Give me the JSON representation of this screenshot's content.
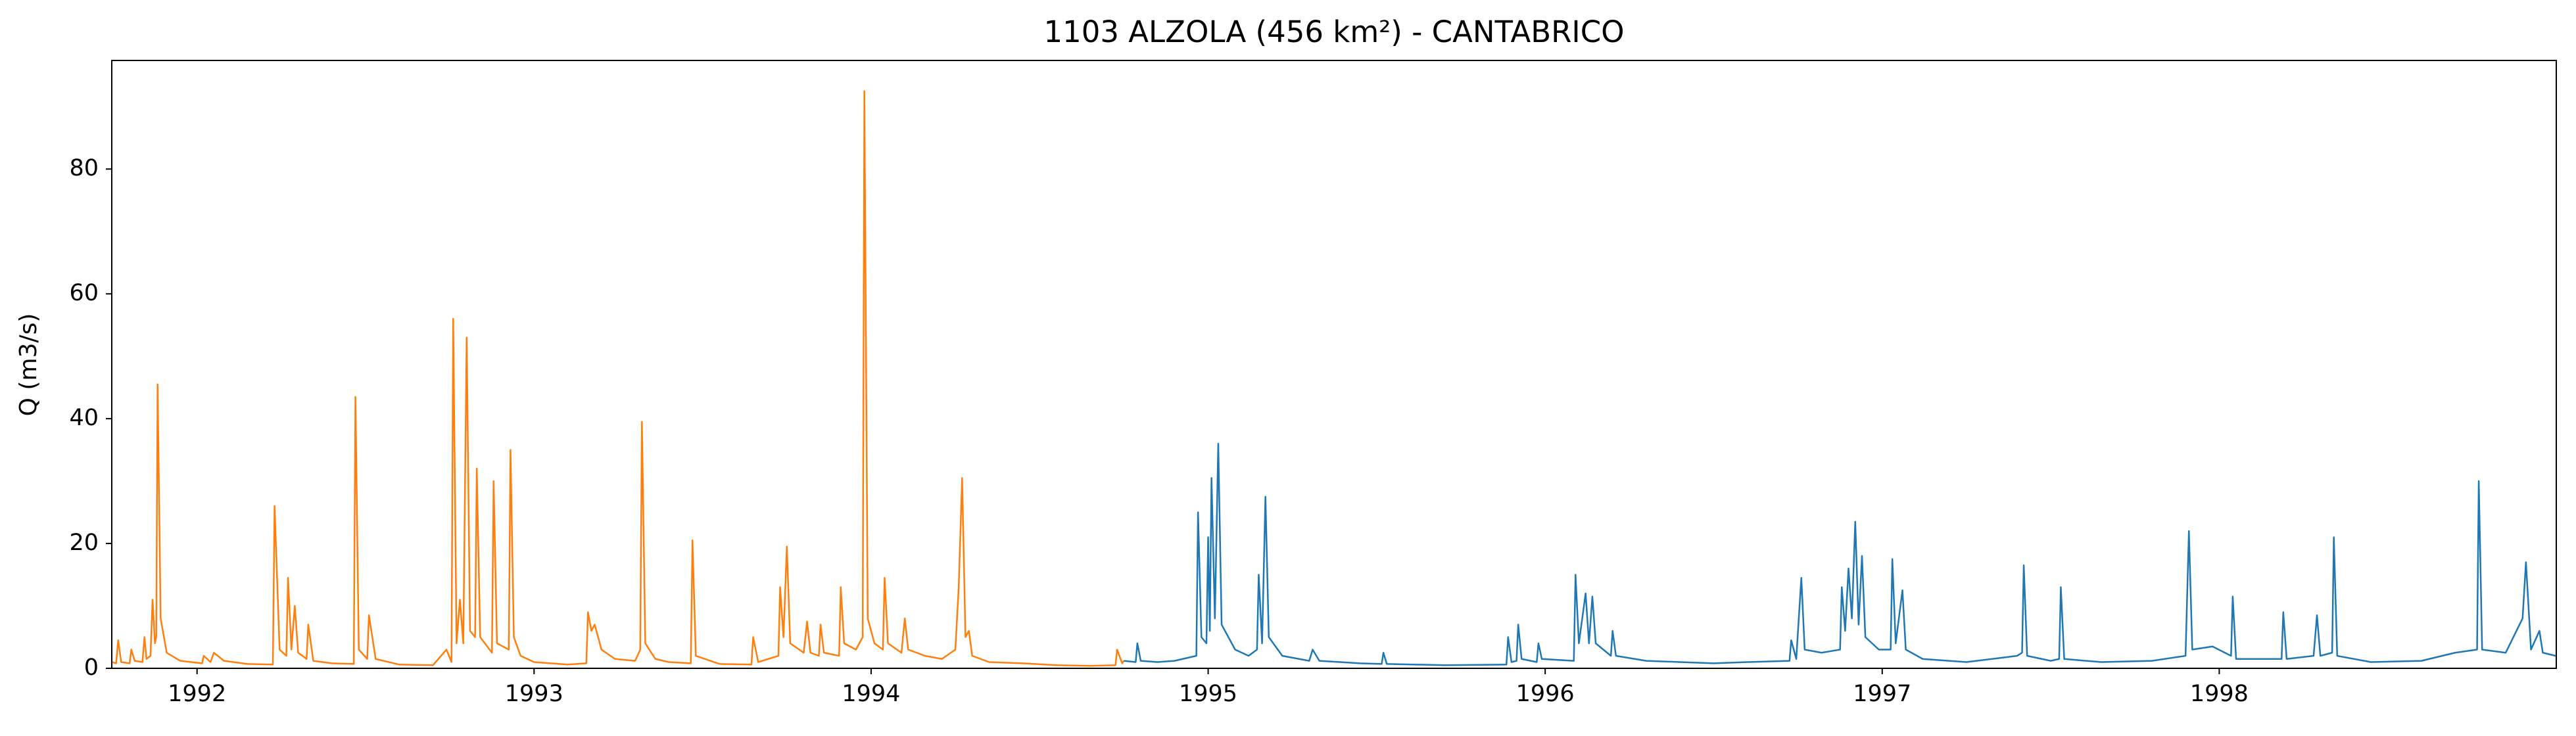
{
  "chart_data": {
    "type": "line",
    "title": "1103 ALZOLA (456 km²) - CANTABRICO",
    "y_label": "Q (m3/s)",
    "xlim": [
      1991.747,
      1999.0
    ],
    "xticks": [
      1992,
      1993,
      1994,
      1995,
      1996,
      1997,
      1998
    ],
    "ylim": [
      0,
      97.4
    ],
    "yticks": [
      0,
      20,
      40,
      60,
      80
    ],
    "grid": false,
    "series": [
      {
        "color": "#ff7f0e",
        "x": [
          1991.747,
          1991.76,
          1991.766,
          1991.775,
          1991.8,
          1991.805,
          1991.815,
          1991.838,
          1991.844,
          1991.85,
          1991.862,
          1991.868,
          1991.875,
          1991.879,
          1991.883,
          1991.892,
          1991.91,
          1991.95,
          1992.015,
          1992.02,
          1992.04,
          1992.05,
          1992.08,
          1992.15,
          1992.225,
          1992.23,
          1992.245,
          1992.265,
          1992.27,
          1992.28,
          1992.29,
          1992.3,
          1992.325,
          1992.33,
          1992.345,
          1992.4,
          1992.465,
          1992.47,
          1992.48,
          1992.505,
          1992.51,
          1992.53,
          1992.6,
          1992.7,
          1992.74,
          1992.755,
          1992.76,
          1992.77,
          1992.78,
          1992.79,
          1992.8,
          1992.81,
          1992.825,
          1992.83,
          1992.84,
          1992.875,
          1992.88,
          1992.89,
          1992.925,
          1992.93,
          1992.94,
          1992.96,
          1993.0,
          1993.1,
          1993.155,
          1993.16,
          1993.17,
          1993.18,
          1993.2,
          1993.24,
          1993.3,
          1993.315,
          1993.32,
          1993.33,
          1993.36,
          1993.4,
          1993.465,
          1993.47,
          1993.48,
          1993.55,
          1993.645,
          1993.65,
          1993.665,
          1993.725,
          1993.73,
          1993.74,
          1993.75,
          1993.76,
          1993.8,
          1993.81,
          1993.82,
          1993.845,
          1993.85,
          1993.86,
          1993.905,
          1993.91,
          1993.92,
          1993.955,
          1993.975,
          1993.98,
          1993.99,
          1994.01,
          1994.035,
          1994.04,
          1994.05,
          1994.09,
          1994.1,
          1994.11,
          1994.16,
          1994.21,
          1994.25,
          1994.26,
          1994.27,
          1994.28,
          1994.29,
          1994.3,
          1994.35,
          1994.45,
          1994.55,
          1994.65,
          1994.725,
          1994.73,
          1994.745,
          1994.75
        ],
        "values": [
          1.0,
          0.8,
          4.5,
          1.0,
          0.8,
          3.0,
          1.2,
          1.0,
          5.0,
          1.5,
          2.0,
          11.0,
          4.0,
          5.0,
          45.5,
          8.0,
          2.5,
          1.2,
          0.8,
          2.0,
          1.0,
          2.5,
          1.2,
          0.7,
          0.6,
          26.0,
          3.0,
          2.0,
          14.5,
          3.0,
          10.0,
          2.5,
          1.5,
          7.0,
          1.2,
          0.8,
          0.7,
          43.5,
          3.0,
          1.5,
          8.5,
          1.5,
          0.6,
          0.5,
          3.0,
          1.0,
          56.0,
          4.0,
          11.0,
          4.0,
          53.0,
          6.0,
          5.0,
          32.0,
          5.0,
          2.5,
          30.0,
          4.0,
          3.0,
          35.0,
          5.0,
          2.0,
          1.0,
          0.6,
          0.8,
          9.0,
          6.0,
          7.0,
          3.0,
          1.5,
          1.2,
          3.0,
          39.5,
          4.0,
          1.5,
          1.0,
          0.8,
          20.5,
          2.0,
          0.7,
          0.6,
          5.0,
          1.0,
          2.0,
          13.0,
          5.0,
          19.5,
          4.0,
          2.5,
          7.5,
          2.5,
          2.0,
          7.0,
          2.5,
          2.0,
          13.0,
          4.0,
          3.0,
          5.0,
          92.5,
          8.0,
          4.0,
          3.0,
          14.5,
          4.0,
          2.5,
          8.0,
          3.0,
          2.0,
          1.5,
          3.0,
          13.0,
          30.5,
          5.0,
          6.0,
          2.0,
          1.0,
          0.8,
          0.5,
          0.4,
          0.5,
          3.0,
          0.8,
          1.2
        ]
      },
      {
        "color": "#1f77b4",
        "x": [
          1994.75,
          1994.785,
          1994.79,
          1994.8,
          1994.85,
          1994.9,
          1994.965,
          1994.97,
          1994.98,
          1994.995,
          1995.0,
          1995.005,
          1995.01,
          1995.02,
          1995.03,
          1995.04,
          1995.08,
          1995.12,
          1995.145,
          1995.15,
          1995.16,
          1995.17,
          1995.18,
          1995.22,
          1995.3,
          1995.31,
          1995.33,
          1995.45,
          1995.515,
          1995.52,
          1995.53,
          1995.7,
          1995.885,
          1995.89,
          1995.9,
          1995.915,
          1995.92,
          1995.93,
          1995.975,
          1995.98,
          1995.99,
          1996.085,
          1996.09,
          1996.1,
          1996.12,
          1996.13,
          1996.14,
          1996.15,
          1996.195,
          1996.2,
          1996.21,
          1996.3,
          1996.4,
          1996.5,
          1996.6,
          1996.725,
          1996.73,
          1996.745,
          1996.76,
          1996.77,
          1996.82,
          1996.875,
          1996.88,
          1996.89,
          1996.9,
          1996.91,
          1996.92,
          1996.93,
          1996.94,
          1996.95,
          1996.99,
          1997.025,
          1997.03,
          1997.04,
          1997.06,
          1997.07,
          1997.12,
          1997.25,
          1997.4,
          1997.415,
          1997.42,
          1997.43,
          1997.5,
          1997.525,
          1997.53,
          1997.54,
          1997.65,
          1997.8,
          1997.9,
          1997.91,
          1997.92,
          1997.98,
          1998.035,
          1998.04,
          1998.05,
          1998.185,
          1998.19,
          1998.2,
          1998.28,
          1998.29,
          1998.3,
          1998.335,
          1998.34,
          1998.35,
          1998.45,
          1998.6,
          1998.7,
          1998.765,
          1998.77,
          1998.78,
          1998.85,
          1998.9,
          1998.91,
          1998.925,
          1998.95,
          1998.96,
          1998.998
        ],
        "values": [
          1.2,
          1.0,
          4.0,
          1.2,
          1.0,
          1.2,
          2.0,
          25.0,
          5.0,
          4.0,
          21.0,
          6.0,
          30.5,
          8.0,
          36.0,
          7.0,
          3.0,
          2.0,
          3.0,
          15.0,
          4.0,
          27.5,
          5.0,
          2.0,
          1.2,
          3.0,
          1.2,
          0.8,
          0.7,
          2.5,
          0.7,
          0.5,
          0.6,
          5.0,
          1.0,
          1.2,
          7.0,
          1.5,
          1.0,
          4.0,
          1.5,
          1.2,
          15.0,
          4.0,
          12.0,
          4.0,
          11.5,
          4.0,
          2.0,
          6.0,
          2.0,
          1.2,
          1.0,
          0.8,
          1.0,
          1.2,
          4.5,
          1.5,
          14.5,
          3.0,
          2.5,
          3.0,
          13.0,
          6.0,
          16.0,
          8.0,
          23.5,
          7.0,
          18.0,
          5.0,
          3.0,
          3.0,
          17.5,
          4.0,
          12.5,
          3.0,
          1.5,
          1.0,
          2.0,
          2.5,
          16.5,
          2.0,
          1.2,
          1.5,
          13.0,
          1.5,
          1.0,
          1.2,
          2.0,
          22.0,
          3.0,
          3.5,
          2.0,
          11.5,
          1.5,
          1.5,
          9.0,
          1.5,
          2.0,
          8.5,
          2.0,
          2.5,
          21.0,
          2.0,
          1.0,
          1.2,
          2.5,
          3.0,
          30.0,
          3.0,
          2.5,
          8.0,
          17.0,
          3.0,
          6.0,
          2.5,
          2.0
        ]
      }
    ]
  }
}
